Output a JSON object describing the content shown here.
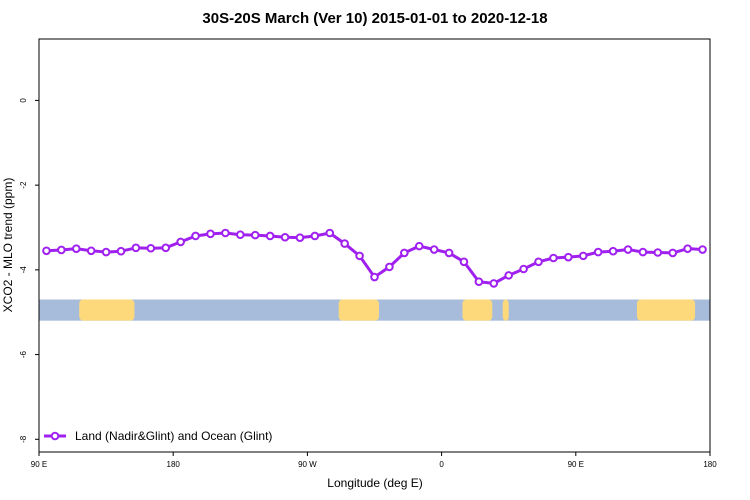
{
  "chart_data": {
    "type": "line",
    "title": "30S-20S March (Ver 10)   2015-01-01 to 2020-12-18",
    "xlabel": "Longitude (deg E)",
    "ylabel": "XCO2 - MLO trend (ppm)",
    "xlim": [
      90,
      540
    ],
    "ylim": [
      -8.3,
      1.45
    ],
    "x_ticks": [
      {
        "value": 90,
        "label": "90 E"
      },
      {
        "value": 180,
        "label": "180"
      },
      {
        "value": 270,
        "label": "90 W"
      },
      {
        "value": 360,
        "label": "0"
      },
      {
        "value": 450,
        "label": "90 E"
      },
      {
        "value": 540,
        "label": "180"
      }
    ],
    "y_ticks": [
      {
        "value": 0,
        "label": "0"
      },
      {
        "value": -2,
        "label": "-2"
      },
      {
        "value": -4,
        "label": "-4"
      },
      {
        "value": -6,
        "label": "-6"
      },
      {
        "value": -8,
        "label": "-8"
      }
    ],
    "series": [
      {
        "name": "Land (Nadir&Glint) and Ocean (Glint)",
        "color": "#a020f0",
        "x": [
          95,
          105,
          115,
          125,
          135,
          145,
          155,
          165,
          175,
          185,
          195,
          205,
          215,
          225,
          235,
          245,
          255,
          265,
          275,
          285,
          295,
          305,
          315,
          325,
          335,
          345,
          355,
          365,
          375,
          385,
          395,
          405,
          415,
          425,
          435,
          445,
          455,
          465,
          475,
          485,
          495,
          505,
          515,
          525,
          535
        ],
        "y": [
          -3.55,
          -3.53,
          -3.5,
          -3.55,
          -3.58,
          -3.56,
          -3.48,
          -3.49,
          -3.48,
          -3.34,
          -3.2,
          -3.15,
          -3.13,
          -3.17,
          -3.18,
          -3.2,
          -3.23,
          -3.24,
          -3.2,
          -3.13,
          -3.38,
          -3.67,
          -4.17,
          -3.93,
          -3.6,
          -3.44,
          -3.52,
          -3.6,
          -3.81,
          -4.28,
          -4.32,
          -4.13,
          -3.98,
          -3.81,
          -3.72,
          -3.7,
          -3.67,
          -3.58,
          -3.56,
          -3.52,
          -3.58,
          -3.59,
          -3.6,
          -3.5,
          -3.52
        ]
      }
    ],
    "landmask": {
      "y_range": [
        -5.2,
        -4.7
      ],
      "ocean_color": "#a7bcdb",
      "land_color": "#fed97b",
      "land_lon_ranges": [
        [
          117,
          154
        ],
        [
          291,
          318
        ],
        [
          374,
          394
        ],
        [
          401,
          405
        ],
        [
          491,
          530
        ]
      ]
    },
    "legend": {
      "position": "bottom-left",
      "label": "Land (Nadir&Glint) and Ocean (Glint)"
    }
  }
}
